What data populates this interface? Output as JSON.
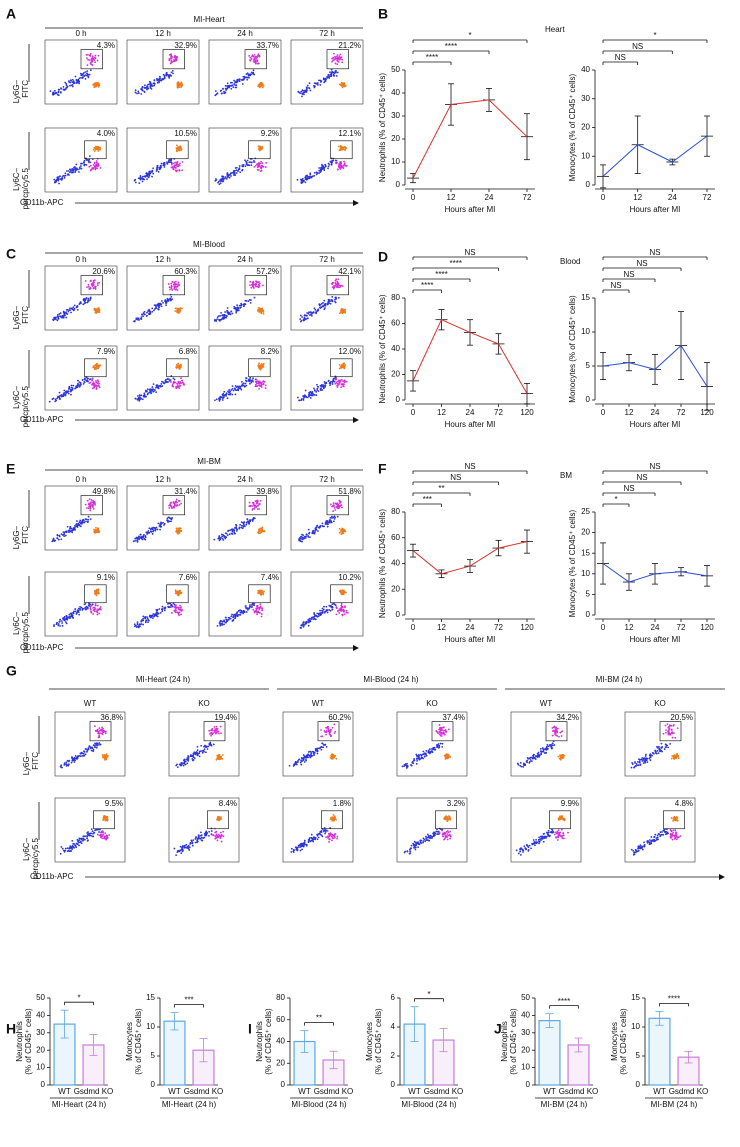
{
  "flow": [
    {
      "panel": "A",
      "title": "MI-Heart",
      "columns": [
        "0 h",
        "12 h",
        "24 h",
        "72 h"
      ],
      "gates": [
        [
          "4.3%",
          "32.9%",
          "33.7%",
          "21.2%"
        ],
        [
          "4.0%",
          "10.5%",
          "9.2%",
          "12.1%"
        ]
      ],
      "ylabels": [
        [
          "Ly6G–",
          "FITC"
        ],
        [
          "Ly6C–",
          "percp/cy5.5"
        ]
      ],
      "xlabel": "CD11b-APC"
    },
    {
      "panel": "C",
      "title": "MI-Blood",
      "columns": [
        "0 h",
        "12 h",
        "24 h",
        "72 h"
      ],
      "gates": [
        [
          "20.6%",
          "60.3%",
          "57.2%",
          "42.1%"
        ],
        [
          "7.9%",
          "6.8%",
          "8.2%",
          "12.0%"
        ]
      ],
      "ylabels": [
        [
          "Ly6G–",
          "FITC"
        ],
        [
          "Ly6C–",
          "percp/cy5.5"
        ]
      ],
      "xlabel": "CD11b-APC"
    },
    {
      "panel": "E",
      "title": "MI-BM",
      "columns": [
        "0 h",
        "12 h",
        "24 h",
        "72 h"
      ],
      "gates": [
        [
          "49.8%",
          "31.4%",
          "39.8%",
          "51.8%"
        ],
        [
          "9.1%",
          "7.6%",
          "7.4%",
          "10.2%"
        ]
      ],
      "ylabels": [
        [
          "Ly6G–",
          "FITC"
        ],
        [
          "Ly6C–",
          "percp/cy5.5"
        ]
      ],
      "xlabel": "CD11b-APC"
    },
    {
      "panel": "G",
      "groups": [
        {
          "title": "MI-Heart (24 h)",
          "columns": [
            "WT",
            "KO"
          ]
        },
        {
          "title": "MI-Blood (24 h)",
          "columns": [
            "WT",
            "KO"
          ]
        },
        {
          "title": "MI-BM (24 h)",
          "columns": [
            "WT",
            "KO"
          ]
        }
      ],
      "gates": [
        [
          "36.8%",
          "19.4%",
          "60.2%",
          "37.4%",
          "34.2%",
          "20.5%"
        ],
        [
          "9.5%",
          "8.4%",
          "1.8%",
          "3.2%",
          "9.9%",
          "4.8%"
        ]
      ],
      "ylabels": [
        [
          "Ly6G–",
          "FITC"
        ],
        [
          "Ly6C–",
          "percp/cy5.5"
        ]
      ],
      "xlabel": "CD11b-APC"
    }
  ],
  "chart_data": [
    {
      "type": "line",
      "panel": "B",
      "heading": "Heart",
      "ylabel": [
        "Neutrophils (% of CD45⁺ cells)"
      ],
      "xlabel": "Hours after MI",
      "categories": [
        "0",
        "12",
        "24",
        "72"
      ],
      "values": [
        3,
        35,
        37,
        21
      ],
      "errors": [
        2,
        9,
        5,
        10
      ],
      "color": "#e0302a",
      "ylim": [
        0,
        50
      ],
      "yticks": [
        0,
        10,
        20,
        30,
        40,
        50
      ],
      "brackets": [
        {
          "pair": [
            0,
            1
          ],
          "label": "****"
        },
        {
          "pair": [
            0,
            2
          ],
          "label": "****"
        },
        {
          "pair": [
            0,
            3
          ],
          "label": "*"
        }
      ]
    },
    {
      "type": "line",
      "ylabel": [
        "Monocytes (% of CD45⁺ cells)"
      ],
      "xlabel": "Hours after MI",
      "categories": [
        "0",
        "12",
        "24",
        "72"
      ],
      "values": [
        3,
        14,
        8,
        17
      ],
      "errors": [
        4,
        10,
        1,
        7
      ],
      "color": "#2a4fd6",
      "ylim": [
        0,
        40
      ],
      "yticks": [
        0,
        10,
        20,
        30,
        40
      ],
      "brackets": [
        {
          "pair": [
            0,
            1
          ],
          "label": "NS"
        },
        {
          "pair": [
            0,
            2
          ],
          "label": "NS"
        },
        {
          "pair": [
            0,
            3
          ],
          "label": "*"
        }
      ]
    },
    {
      "type": "line",
      "panel": "D",
      "heading": "Blood",
      "ylabel": [
        "Neutrophils (% of CD45⁺ cells)"
      ],
      "xlabel": "Hours after MI",
      "categories": [
        "0",
        "12",
        "24",
        "72",
        "120"
      ],
      "values": [
        15,
        63,
        53,
        44,
        5
      ],
      "errors": [
        8,
        8,
        10,
        8,
        8
      ],
      "color": "#e0302a",
      "ylim": [
        0,
        80
      ],
      "yticks": [
        0,
        20,
        40,
        60,
        80
      ],
      "brackets": [
        {
          "pair": [
            0,
            1
          ],
          "label": "****"
        },
        {
          "pair": [
            0,
            2
          ],
          "label": "****"
        },
        {
          "pair": [
            0,
            3
          ],
          "label": "****"
        },
        {
          "pair": [
            0,
            4
          ],
          "label": "NS"
        }
      ]
    },
    {
      "type": "line",
      "ylabel": [
        "Monocytes (% of CD45⁺ cells)"
      ],
      "xlabel": "Hours after MI",
      "categories": [
        "0",
        "12",
        "24",
        "72",
        "120"
      ],
      "values": [
        5,
        5.5,
        4.5,
        8,
        2
      ],
      "errors": [
        2,
        1.2,
        2.2,
        5,
        3.5
      ],
      "color": "#2a4fd6",
      "ylim": [
        0,
        15
      ],
      "yticks": [
        0,
        5,
        10,
        15
      ],
      "brackets": [
        {
          "pair": [
            0,
            1
          ],
          "label": "NS"
        },
        {
          "pair": [
            0,
            2
          ],
          "label": "NS"
        },
        {
          "pair": [
            0,
            3
          ],
          "label": "NS"
        },
        {
          "pair": [
            0,
            4
          ],
          "label": "NS"
        }
      ]
    },
    {
      "type": "line",
      "panel": "F",
      "heading": "BM",
      "ylabel": [
        "Neutrophils (% of CD45⁺ cells)"
      ],
      "xlabel": "Hours after MI",
      "categories": [
        "0",
        "12",
        "24",
        "72",
        "120"
      ],
      "values": [
        50,
        32,
        38,
        52,
        57
      ],
      "errors": [
        5,
        3,
        5,
        6,
        9
      ],
      "color": "#e0302a",
      "ylim": [
        0,
        80
      ],
      "yticks": [
        0,
        20,
        40,
        60,
        80
      ],
      "brackets": [
        {
          "pair": [
            0,
            1
          ],
          "label": "***"
        },
        {
          "pair": [
            0,
            2
          ],
          "label": "**"
        },
        {
          "pair": [
            0,
            3
          ],
          "label": "NS"
        },
        {
          "pair": [
            0,
            4
          ],
          "label": "NS"
        }
      ]
    },
    {
      "type": "line",
      "ylabel": [
        "Monocytes (% of CD45⁺ cells)"
      ],
      "xlabel": "Hours after MI",
      "categories": [
        "0",
        "12",
        "24",
        "72",
        "120"
      ],
      "values": [
        12.5,
        8,
        10,
        10.5,
        9.5
      ],
      "errors": [
        5,
        2,
        2.5,
        1,
        2.5
      ],
      "color": "#2a4fd6",
      "ylim": [
        0,
        25
      ],
      "yticks": [
        0,
        5,
        10,
        15,
        20,
        25
      ],
      "brackets": [
        {
          "pair": [
            0,
            1
          ],
          "label": "*"
        },
        {
          "pair": [
            0,
            2
          ],
          "label": "NS"
        },
        {
          "pair": [
            0,
            3
          ],
          "label": "NS"
        },
        {
          "pair": [
            0,
            4
          ],
          "label": "NS"
        }
      ]
    },
    {
      "type": "bar",
      "panel": "H",
      "ylabel": [
        "Neutrophils",
        "(% of CD45⁺ cells)"
      ],
      "xlabel": "MI-Heart (24 h)",
      "categories": [
        "WT",
        "Gsdmd KO"
      ],
      "values": [
        35,
        23
      ],
      "errors": [
        8,
        6
      ],
      "colors": [
        "#5aa9e6",
        "#c77ddb"
      ],
      "ylim": [
        0,
        50
      ],
      "yticks": [
        0,
        10,
        20,
        30,
        40,
        50
      ],
      "sig": "*"
    },
    {
      "type": "bar",
      "ylabel": [
        "Monocytes",
        "(% of CD45⁺ cells)"
      ],
      "xlabel": "MI-Heart (24 h)",
      "categories": [
        "WT",
        "Gsdmd KO"
      ],
      "values": [
        11,
        6
      ],
      "errors": [
        1.5,
        2
      ],
      "colors": [
        "#5aa9e6",
        "#c77ddb"
      ],
      "ylim": [
        0,
        15
      ],
      "yticks": [
        0,
        5,
        10,
        15
      ],
      "sig": "***"
    },
    {
      "type": "bar",
      "panel": "I",
      "ylabel": [
        "Neutrophils",
        "(% of CD45⁺ cells)"
      ],
      "xlabel": "MI-Blood (24 h)",
      "categories": [
        "WT",
        "Gsdmd KO"
      ],
      "values": [
        40,
        23
      ],
      "errors": [
        10,
        8
      ],
      "colors": [
        "#5aa9e6",
        "#c77ddb"
      ],
      "ylim": [
        0,
        80
      ],
      "yticks": [
        0,
        20,
        40,
        60,
        80
      ],
      "sig": "**"
    },
    {
      "type": "bar",
      "ylabel": [
        "Monocytes",
        "(% of CD45⁺ cells)"
      ],
      "xlabel": "MI-Blood (24 h)",
      "categories": [
        "WT",
        "Gsdmd KO"
      ],
      "values": [
        4.2,
        3.1
      ],
      "errors": [
        1.2,
        0.8
      ],
      "colors": [
        "#5aa9e6",
        "#c77ddb"
      ],
      "ylim": [
        0,
        6
      ],
      "yticks": [
        0,
        2,
        4,
        6
      ],
      "sig": "*"
    },
    {
      "type": "bar",
      "panel": "J",
      "ylabel": [
        "Neutrophils",
        "(% of CD45⁺ cells)"
      ],
      "xlabel": "MI-BM (24 h)",
      "categories": [
        "WT",
        "Gsdmd KO"
      ],
      "values": [
        37,
        23
      ],
      "errors": [
        4,
        4
      ],
      "colors": [
        "#5aa9e6",
        "#c77ddb"
      ],
      "ylim": [
        0,
        50
      ],
      "yticks": [
        0,
        10,
        20,
        30,
        40,
        50
      ],
      "sig": "****"
    },
    {
      "type": "bar",
      "ylabel": [
        "Monocytes",
        "(% of CD45⁺ cells)"
      ],
      "xlabel": "MI-BM (24 h)",
      "categories": [
        "WT",
        "Gsdmd KO"
      ],
      "values": [
        11.5,
        4.8
      ],
      "errors": [
        1.2,
        1
      ],
      "colors": [
        "#5aa9e6",
        "#c77ddb"
      ],
      "ylim": [
        0,
        15
      ],
      "yticks": [
        0,
        5,
        10,
        15
      ],
      "sig": "****"
    }
  ]
}
